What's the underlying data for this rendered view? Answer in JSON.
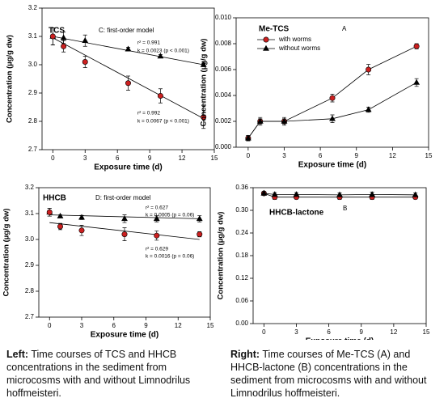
{
  "chart_data": [
    {
      "type": "scatter",
      "title": "TCS",
      "subtitle": "C: first-order model",
      "xlabel": "Exposure time (d)",
      "ylabel": "Concentration (µg/g dw)",
      "annotations": [
        "r² = 0.991",
        "k = 0.0023 (p < 0.001)",
        "r² = 0.992",
        "k = 0.0067 (p < 0.001)"
      ],
      "x": [
        0,
        1,
        3,
        7,
        10,
        14
      ],
      "series": [
        {
          "color": "#000000",
          "marker": "triangle",
          "values": [
            3.1,
            3.095,
            3.085,
            3.055,
            3.03,
            3.0
          ],
          "errors": [
            0.03,
            0.02,
            0.02,
            0.006,
            0.006,
            0.005
          ],
          "fit": [
            3.1,
            3.0
          ]
        },
        {
          "color": "#cc2020",
          "marker": "circle",
          "values": [
            3.1,
            3.065,
            3.01,
            2.935,
            2.89,
            2.815
          ],
          "errors": [
            0.03,
            0.02,
            0.02,
            0.025,
            0.025,
            0.04
          ],
          "fit": [
            3.095,
            2.81
          ]
        }
      ],
      "fit_x": [
        0,
        14
      ],
      "xlim": [
        -1,
        15
      ],
      "xticks": [
        0,
        3,
        6,
        9,
        12,
        15
      ],
      "ylim": [
        2.7,
        3.2
      ],
      "yticks": [
        2.7,
        2.8,
        2.9,
        {
          "value": 3,
          "label": "3.0"
        },
        3.1,
        3.2
      ]
    },
    {
      "type": "line",
      "title": "Me-TCS",
      "subtitle": "A",
      "xlabel": "Exposure time (d)",
      "ylabel": "Concentration (µg/g dw)",
      "legend": "upper left",
      "x": [
        0,
        1,
        3,
        7,
        10,
        14
      ],
      "series": [
        {
          "name": "with worms",
          "color": "#cc2020",
          "marker": "circle",
          "values": [
            0.0007,
            0.002,
            0.002,
            0.0038,
            0.006,
            0.0078
          ],
          "errors": [
            0.0002,
            0.0002,
            0.0002,
            0.0003,
            0.0004,
            0.0002
          ]
        },
        {
          "name": "without worms",
          "color": "#000000",
          "marker": "triangle",
          "values": [
            0.0007,
            0.002,
            0.002,
            0.0022,
            0.0029,
            0.005
          ],
          "errors": [
            0.0002,
            0.0003,
            0.0003,
            0.0003,
            0.0002,
            0.0003
          ]
        }
      ],
      "xlim": [
        -1,
        15
      ],
      "xticks": [
        0,
        3,
        6,
        9,
        12,
        15
      ],
      "ylim": [
        0,
        0.01
      ],
      "yticks": [
        {
          "value": 0,
          "label": "0.000"
        },
        {
          "value": 0.002,
          "label": "0.002"
        },
        {
          "value": 0.004,
          "label": "0.004"
        },
        {
          "value": 0.006,
          "label": "0.006"
        },
        {
          "value": 0.008,
          "label": "0.008"
        },
        {
          "value": 0.01,
          "label": "0.010"
        }
      ]
    },
    {
      "type": "scatter",
      "title": "HHCB",
      "subtitle": "D: first-order model",
      "xlabel": "Exposure time (d)",
      "ylabel": "Concentration (µg/g dw)",
      "annotations": [
        "r² = 0.627",
        "k = 0.0005 (p = 0.06)",
        "r² = 0.629",
        "k = 0.0016 (p = 0.06)"
      ],
      "x": [
        0,
        1,
        3,
        7,
        10,
        14
      ],
      "series": [
        {
          "color": "#000000",
          "marker": "triangle",
          "values": [
            3.105,
            3.09,
            3.085,
            3.08,
            3.08,
            3.08
          ],
          "errors": [
            0.015,
            0.005,
            0.008,
            0.015,
            0.012,
            0.012
          ],
          "fit": [
            3.095,
            3.08
          ]
        },
        {
          "color": "#cc2020",
          "marker": "circle",
          "values": [
            3.105,
            3.05,
            3.035,
            3.02,
            3.015,
            3.02
          ],
          "errors": [
            0.015,
            0.012,
            0.02,
            0.025,
            0.018,
            0.01
          ],
          "fit": [
            3.065,
            3.0
          ]
        }
      ],
      "fit_x": [
        0,
        14
      ],
      "xlim": [
        -1,
        15
      ],
      "xticks": [
        0,
        3,
        6,
        9,
        12,
        15
      ],
      "ylim": [
        2.7,
        3.2
      ],
      "yticks": [
        2.7,
        2.8,
        2.9,
        {
          "value": 3,
          "label": "3.0"
        },
        3.1,
        3.2
      ]
    },
    {
      "type": "line",
      "title": "HHCB-lactone",
      "subtitle": "B",
      "xlabel": "Exposure time (d)",
      "ylabel": "Concentration (µg/g dw)",
      "x": [
        0,
        1,
        3,
        7,
        10,
        14
      ],
      "series": [
        {
          "color": "#cc2020",
          "marker": "circle",
          "values": [
            0.345,
            0.335,
            0.335,
            0.335,
            0.335,
            0.335
          ],
          "errors": [
            0.004,
            0.006,
            0.005,
            0.006,
            0.006,
            0.005
          ]
        },
        {
          "color": "#000000",
          "marker": "triangle",
          "values": [
            0.345,
            0.342,
            0.342,
            0.341,
            0.342,
            0.341
          ],
          "errors": [
            0.004,
            0.005,
            0.005,
            0.005,
            0.006,
            0.005
          ]
        }
      ],
      "xlim": [
        -1,
        15
      ],
      "xticks": [
        0,
        3,
        6,
        9,
        12,
        15
      ],
      "ylim": [
        0,
        0.36
      ],
      "yticks": [
        {
          "value": 0,
          "label": "0.00"
        },
        {
          "value": 0.06,
          "label": "0.06"
        },
        {
          "value": 0.12,
          "label": "0.12"
        },
        {
          "value": 0.18,
          "label": "0.18"
        },
        {
          "value": 0.24,
          "label": "0.24"
        },
        {
          "value": 0.3,
          "label": "0.30"
        },
        {
          "value": 0.36,
          "label": "0.36"
        }
      ]
    }
  ],
  "captions": [
    {
      "label": "Left:",
      "text": "Time courses of TCS and HHCB concentrations in the sediment from microcosms with and without Limnodrilus hoffmeisteri."
    },
    {
      "label": "Right:",
      "text": "Time courses of Me-TCS (A) and HHCB-lactone (B) concentrations in the sediment from microcosms with and without Limnodrilus hoffmeisteri."
    }
  ]
}
